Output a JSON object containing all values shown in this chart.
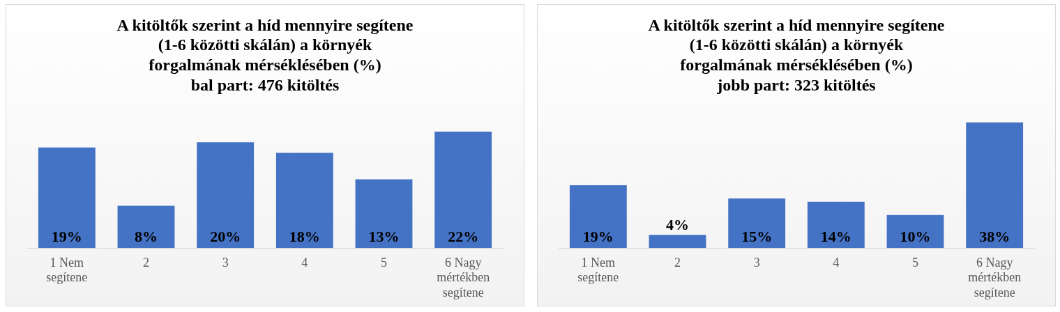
{
  "chart_data": [
    {
      "type": "bar",
      "title": "A kitöltők szerint a híd mennyire segítene (1-6 közötti skálán) a környék forgalmának mérséklésében (%)",
      "subtitle": "bal part: 476 kitöltés",
      "categories": [
        "1 Nem segítene",
        "2",
        "3",
        "4",
        "5",
        "6 Nagy mértékben segítene"
      ],
      "values": [
        19,
        8,
        20,
        18,
        13,
        22
      ],
      "value_labels": [
        "19%",
        "8%",
        "20%",
        "18%",
        "13%",
        "22%"
      ],
      "color": "#4472c4",
      "tick_labels": "x"
    },
    {
      "type": "bar",
      "title": "A kitöltők szerint a híd mennyire segítene (1-6 közötti skálán) a környék forgalmának mérséklésében (%)",
      "subtitle": "jobb part: 323 kitöltés",
      "categories": [
        "1 Nem segítene",
        "2",
        "3",
        "4",
        "5",
        "6 Nagy mértékben segítene"
      ],
      "values": [
        19,
        4,
        15,
        14,
        10,
        38
      ],
      "value_labels": [
        "19%",
        "4%",
        "15%",
        "14%",
        "10%",
        "38%"
      ],
      "color": "#4472c4",
      "tick_labels": "x"
    }
  ]
}
